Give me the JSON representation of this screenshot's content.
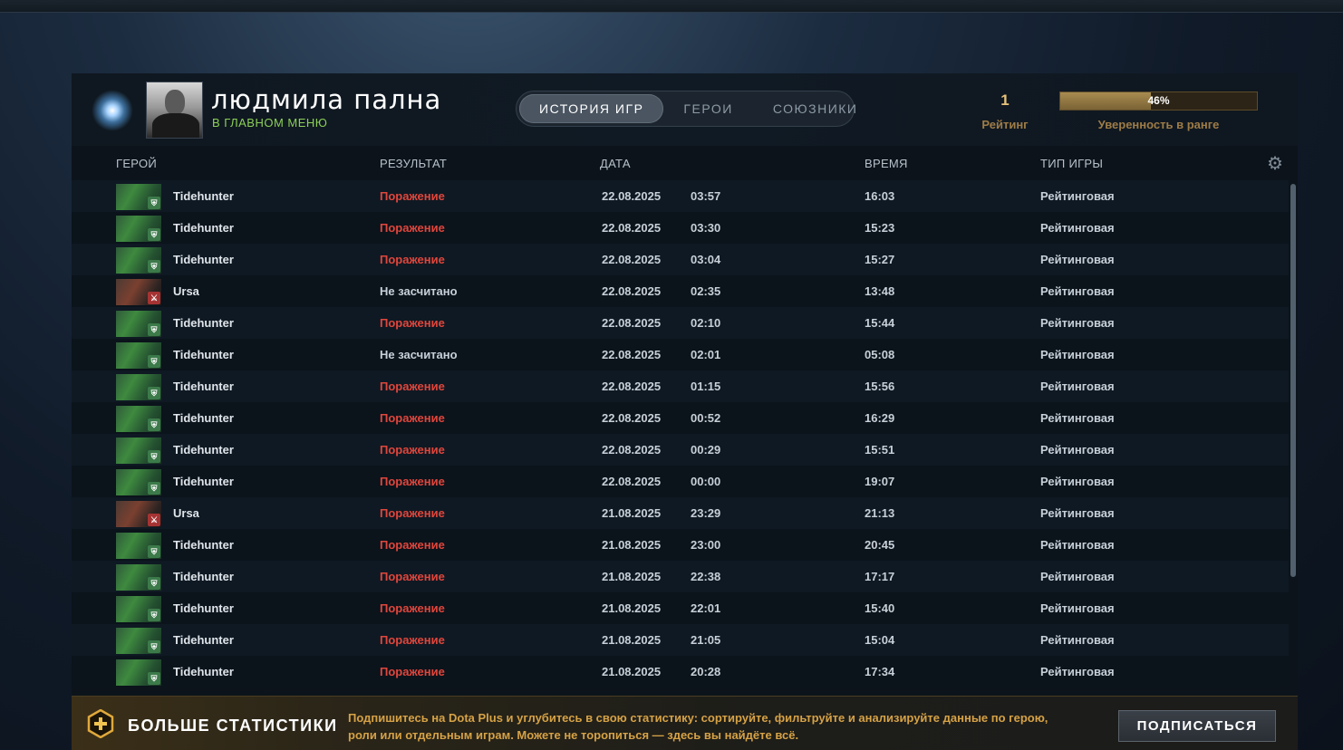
{
  "player": {
    "name": "людмила пална",
    "status": "В ГЛАВНОМ МЕНЮ"
  },
  "tabs": [
    {
      "label": "ИСТОРИЯ ИГР",
      "active": true
    },
    {
      "label": "ГЕРОИ",
      "active": false
    },
    {
      "label": "СОЮЗНИКИ",
      "active": false
    }
  ],
  "rating": {
    "value": "1",
    "label": "Рейтинг"
  },
  "confidence": {
    "percent_text": "46%",
    "fraction": 0.46,
    "label": "Уверенность в ранге"
  },
  "table": {
    "columns": {
      "hero": "ГЕРОЙ",
      "result": "РЕЗУЛЬТАТ",
      "date": "ДАТА",
      "duration": "ВРЕМЯ",
      "type": "ТИП ИГРЫ"
    },
    "rows": [
      {
        "hero": "Tidehunter",
        "result": "Поражение",
        "result_kind": "loss",
        "date": "22.08.2025",
        "start": "03:57",
        "duration": "16:03",
        "type": "Рейтинговая"
      },
      {
        "hero": "Tidehunter",
        "result": "Поражение",
        "result_kind": "loss",
        "date": "22.08.2025",
        "start": "03:30",
        "duration": "15:23",
        "type": "Рейтинговая"
      },
      {
        "hero": "Tidehunter",
        "result": "Поражение",
        "result_kind": "loss",
        "date": "22.08.2025",
        "start": "03:04",
        "duration": "15:27",
        "type": "Рейтинговая"
      },
      {
        "hero": "Ursa",
        "result": "Не засчитано",
        "result_kind": "nocount",
        "date": "22.08.2025",
        "start": "02:35",
        "duration": "13:48",
        "type": "Рейтинговая"
      },
      {
        "hero": "Tidehunter",
        "result": "Поражение",
        "result_kind": "loss",
        "date": "22.08.2025",
        "start": "02:10",
        "duration": "15:44",
        "type": "Рейтинговая"
      },
      {
        "hero": "Tidehunter",
        "result": "Не засчитано",
        "result_kind": "nocount",
        "date": "22.08.2025",
        "start": "02:01",
        "duration": "05:08",
        "type": "Рейтинговая"
      },
      {
        "hero": "Tidehunter",
        "result": "Поражение",
        "result_kind": "loss",
        "date": "22.08.2025",
        "start": "01:15",
        "duration": "15:56",
        "type": "Рейтинговая"
      },
      {
        "hero": "Tidehunter",
        "result": "Поражение",
        "result_kind": "loss",
        "date": "22.08.2025",
        "start": "00:52",
        "duration": "16:29",
        "type": "Рейтинговая"
      },
      {
        "hero": "Tidehunter",
        "result": "Поражение",
        "result_kind": "loss",
        "date": "22.08.2025",
        "start": "00:29",
        "duration": "15:51",
        "type": "Рейтинговая"
      },
      {
        "hero": "Tidehunter",
        "result": "Поражение",
        "result_kind": "loss",
        "date": "22.08.2025",
        "start": "00:00",
        "duration": "19:07",
        "type": "Рейтинговая"
      },
      {
        "hero": "Ursa",
        "result": "Поражение",
        "result_kind": "loss",
        "date": "21.08.2025",
        "start": "23:29",
        "duration": "21:13",
        "type": "Рейтинговая"
      },
      {
        "hero": "Tidehunter",
        "result": "Поражение",
        "result_kind": "loss",
        "date": "21.08.2025",
        "start": "23:00",
        "duration": "20:45",
        "type": "Рейтинговая"
      },
      {
        "hero": "Tidehunter",
        "result": "Поражение",
        "result_kind": "loss",
        "date": "21.08.2025",
        "start": "22:38",
        "duration": "17:17",
        "type": "Рейтинговая"
      },
      {
        "hero": "Tidehunter",
        "result": "Поражение",
        "result_kind": "loss",
        "date": "21.08.2025",
        "start": "22:01",
        "duration": "15:40",
        "type": "Рейтинговая"
      },
      {
        "hero": "Tidehunter",
        "result": "Поражение",
        "result_kind": "loss",
        "date": "21.08.2025",
        "start": "21:05",
        "duration": "15:04",
        "type": "Рейтинговая"
      },
      {
        "hero": "Tidehunter",
        "result": "Поражение",
        "result_kind": "loss",
        "date": "21.08.2025",
        "start": "20:28",
        "duration": "17:34",
        "type": "Рейтинговая"
      }
    ]
  },
  "plus_banner": {
    "title": "БОЛЬШЕ СТАТИСТИКИ",
    "text": "Подпишитесь на Dota Plus и углубитесь в свою статистику: сортируйте, фильтруйте и анализируйте данные по герою, роли или отдельным играм. Можете не торопиться — здесь вы найдёте всё.",
    "button": "ПОДПИСАТЬСЯ"
  },
  "colors": {
    "loss": "#e0463c",
    "status_green": "#8ccf57",
    "gold": "#d6a246"
  },
  "icons": {
    "rank": "rank-emblem-icon",
    "settings": "gear-icon",
    "plus": "dota-plus-icon"
  }
}
